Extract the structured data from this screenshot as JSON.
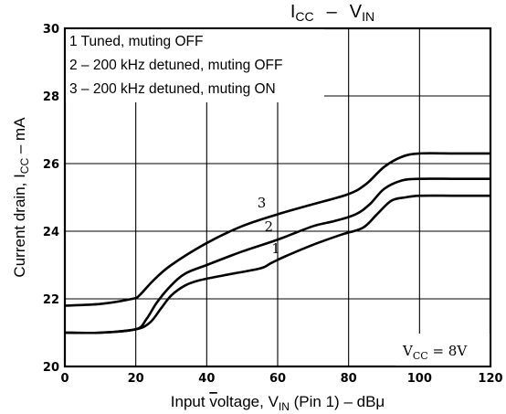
{
  "chart_data": {
    "type": "line",
    "title": {
      "main": "I",
      "sub": "CC",
      "sep": "–",
      "main2": "V",
      "sub2": "IN"
    },
    "xlabel": {
      "pre": "Input ",
      "over": "v",
      "post": "oltage, V",
      "sub": "IN",
      "tail": " (Pin 1) – dBμ"
    },
    "ylabel": {
      "pre": "Current drain, I",
      "sub": "CC",
      "tail": " – mA"
    },
    "xlim": [
      0,
      120
    ],
    "ylim": [
      20,
      30
    ],
    "x_ticks": [
      0,
      20,
      40,
      60,
      80,
      100,
      120
    ],
    "y_ticks": [
      20,
      22,
      24,
      26,
      28,
      30
    ],
    "x_tick_labels": [
      "0",
      "20",
      "40",
      "60",
      "80",
      "100",
      "120"
    ],
    "y_tick_labels": [
      "20",
      "22",
      "24",
      "26",
      "28",
      "30"
    ],
    "grid": true,
    "legend_entries": [
      "1 Tuned, muting OFF",
      "2 – 200 kHz detuned, muting OFF",
      "3 – 200 kHz detuned, muting ON"
    ],
    "condition": {
      "pre": "V",
      "sub": "CC",
      "post": " = 8V"
    },
    "series": [
      {
        "name": "1",
        "x": [
          0,
          10,
          20,
          24,
          27,
          30,
          34,
          38,
          45,
          55,
          58,
          62,
          70,
          78,
          84,
          88,
          92,
          96,
          100,
          110,
          120
        ],
        "y": [
          21.0,
          21.0,
          21.1,
          21.3,
          21.7,
          22.1,
          22.4,
          22.55,
          22.7,
          22.9,
          23.05,
          23.25,
          23.6,
          23.9,
          24.1,
          24.5,
          24.9,
          25.0,
          25.05,
          25.05,
          25.05
        ]
      },
      {
        "name": "2",
        "x": [
          0,
          10,
          20,
          23,
          26,
          30,
          34,
          40,
          50,
          60,
          70,
          76,
          82,
          86,
          90,
          95,
          100,
          110,
          120
        ],
        "y": [
          21.0,
          21.0,
          21.1,
          21.4,
          21.9,
          22.4,
          22.75,
          23.0,
          23.4,
          23.75,
          24.15,
          24.3,
          24.5,
          24.8,
          25.25,
          25.5,
          25.55,
          25.55,
          25.55
        ]
      },
      {
        "name": "3",
        "x": [
          0,
          10,
          19,
          21,
          25,
          30,
          40,
          50,
          60,
          70,
          80,
          85,
          90,
          95,
          100,
          110,
          120
        ],
        "y": [
          21.8,
          21.85,
          22.0,
          22.1,
          22.55,
          23.0,
          23.65,
          24.15,
          24.5,
          24.8,
          25.1,
          25.4,
          25.9,
          26.2,
          26.3,
          26.3,
          26.3
        ]
      }
    ],
    "curve_labels": [
      {
        "text": "1",
        "x": 59.5,
        "y": 23.35
      },
      {
        "text": "2",
        "x": 57.5,
        "y": 24.0
      },
      {
        "text": "3",
        "x": 55.5,
        "y": 24.7
      }
    ]
  }
}
